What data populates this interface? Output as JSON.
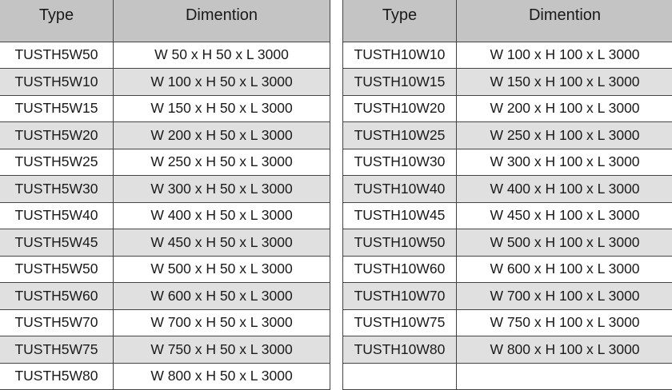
{
  "colors": {
    "header_bg": "#c4c4c4",
    "alt_row_bg": "#e0e0e0",
    "border": "#444444"
  },
  "left_table": {
    "headers": [
      "Type",
      "Dimention"
    ],
    "rows": [
      [
        "TUSTH5W50",
        "W 50 x H 50 x L 3000"
      ],
      [
        "TUSTH5W10",
        "W 100 x H 50 x L 3000"
      ],
      [
        "TUSTH5W15",
        "W 150 x H 50 x L 3000"
      ],
      [
        "TUSTH5W20",
        "W 200 x H 50 x L 3000"
      ],
      [
        "TUSTH5W25",
        "W 250 x H 50 x L 3000"
      ],
      [
        "TUSTH5W30",
        "W 300 x H 50 x L 3000"
      ],
      [
        "TUSTH5W40",
        "W 400 x H 50 x L 3000"
      ],
      [
        "TUSTH5W45",
        "W 450 x H 50 x L 3000"
      ],
      [
        "TUSTH5W50",
        "W 500 x H 50 x L 3000"
      ],
      [
        "TUSTH5W60",
        "W 600 x H 50 x L 3000"
      ],
      [
        "TUSTH5W70",
        "W 700 x H 50 x L 3000"
      ],
      [
        "TUSTH5W75",
        "W 750 x H 50 x L 3000"
      ],
      [
        "TUSTH5W80",
        "W 800 x H 50 x L 3000"
      ]
    ]
  },
  "right_table": {
    "headers": [
      "Type",
      "Dimention"
    ],
    "rows": [
      [
        "TUSTH10W10",
        "W 100 x H 100 x L 3000"
      ],
      [
        "TUSTH10W15",
        "W 150 x H 100 x L 3000"
      ],
      [
        "TUSTH10W20",
        "W 200 x H 100 x L 3000"
      ],
      [
        "TUSTH10W25",
        "W 250 x H 100 x L 3000"
      ],
      [
        "TUSTH10W30",
        "W 300 x H 100 x L 3000"
      ],
      [
        "TUSTH10W40",
        "W 400 x H 100 x L 3000"
      ],
      [
        "TUSTH10W45",
        "W 450 x H 100 x L 3000"
      ],
      [
        "TUSTH10W50",
        "W 500 x H 100 x L 3000"
      ],
      [
        "TUSTH10W60",
        "W 600 x H 100 x L 3000"
      ],
      [
        "TUSTH10W70",
        "W 700 x H 100 x L 3000"
      ],
      [
        "TUSTH10W75",
        "W 750 x H 100 x L 3000"
      ],
      [
        "TUSTH10W80",
        "W 800 x H 100 x L 3000"
      ],
      [
        "",
        ""
      ]
    ]
  }
}
